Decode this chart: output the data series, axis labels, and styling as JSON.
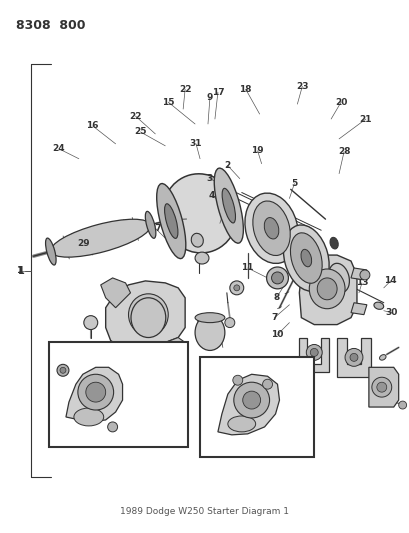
{
  "title": "8308  800",
  "bg_color": "#ffffff",
  "diagram_color": "#2a2a2a",
  "fig_width": 4.1,
  "fig_height": 5.33,
  "dpi": 100,
  "footnote": "1989 Dodge W250 Starter Diagram 1",
  "gray_light": "#d0d0d0",
  "gray_mid": "#b0b0b0",
  "gray_dark": "#808080",
  "line_color": "#333333"
}
